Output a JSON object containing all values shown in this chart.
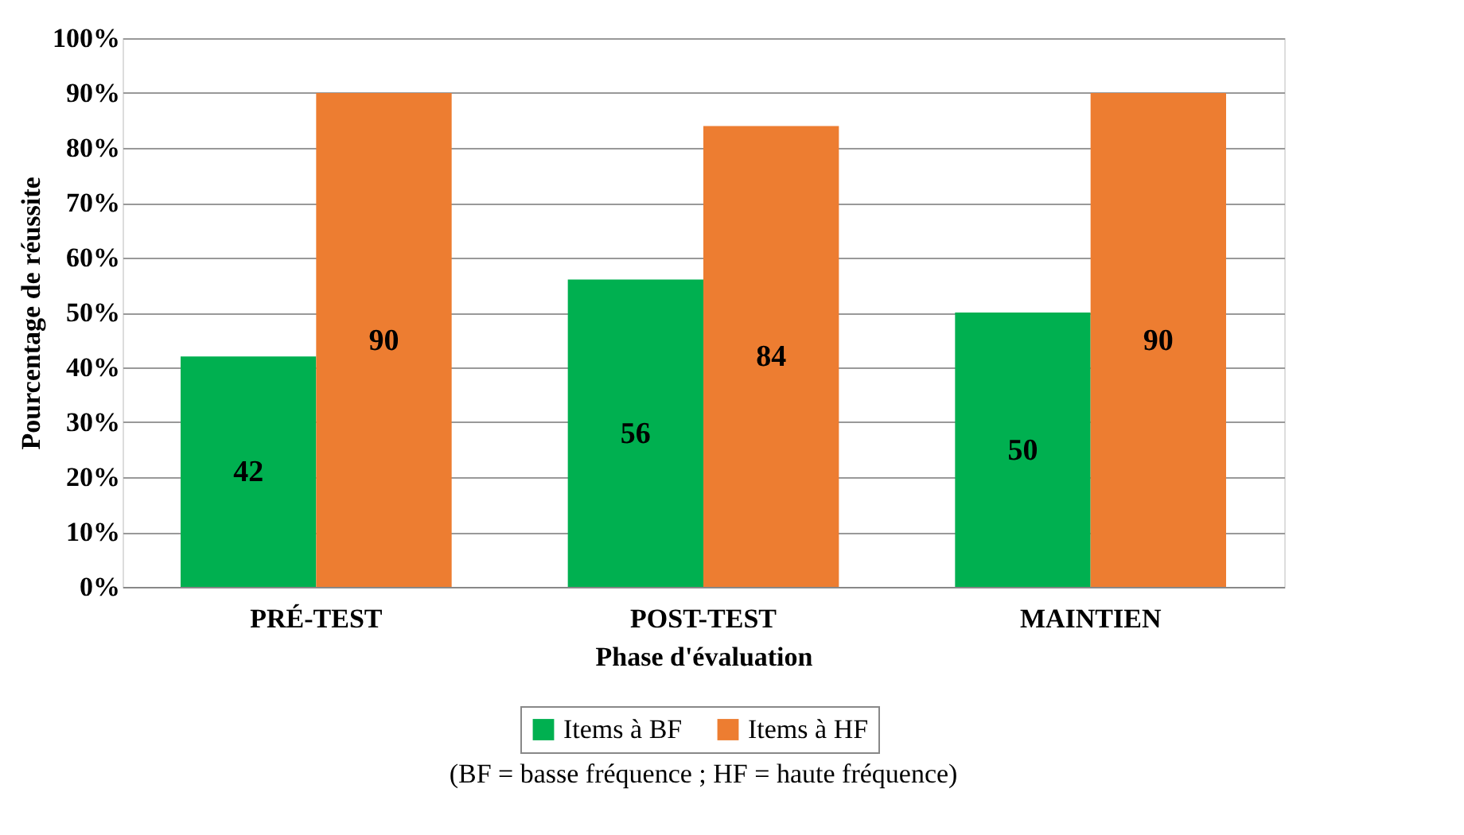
{
  "chart_data": {
    "type": "bar",
    "xlabel": "Phase d'évaluation",
    "ylabel": "Pourcentage de réussite",
    "categories": [
      "PRÉ-TEST",
      "POST-TEST",
      "MAINTIEN"
    ],
    "series": [
      {
        "name": "Items à BF",
        "color": "#00b050",
        "values": [
          42,
          56,
          50
        ]
      },
      {
        "name": "Items à HF",
        "color": "#ed7d31",
        "values": [
          90,
          84,
          90
        ]
      }
    ],
    "ylim": [
      0,
      100
    ],
    "yticks": [
      {
        "value": 0,
        "label": "0%"
      },
      {
        "value": 10,
        "label": "10%"
      },
      {
        "value": 20,
        "label": "20%"
      },
      {
        "value": 30,
        "label": "30%"
      },
      {
        "value": 40,
        "label": "40%"
      },
      {
        "value": 50,
        "label": "50%"
      },
      {
        "value": 60,
        "label": "60%"
      },
      {
        "value": 70,
        "label": "70%"
      },
      {
        "value": 80,
        "label": "80%"
      },
      {
        "value": 90,
        "label": "90%"
      },
      {
        "value": 100,
        "label": "100%"
      }
    ],
    "grid": "y",
    "legend": "bottom",
    "data_labels": true,
    "annotations": [
      "(BF = basse fréquence ; HF = haute fréquence)"
    ]
  }
}
